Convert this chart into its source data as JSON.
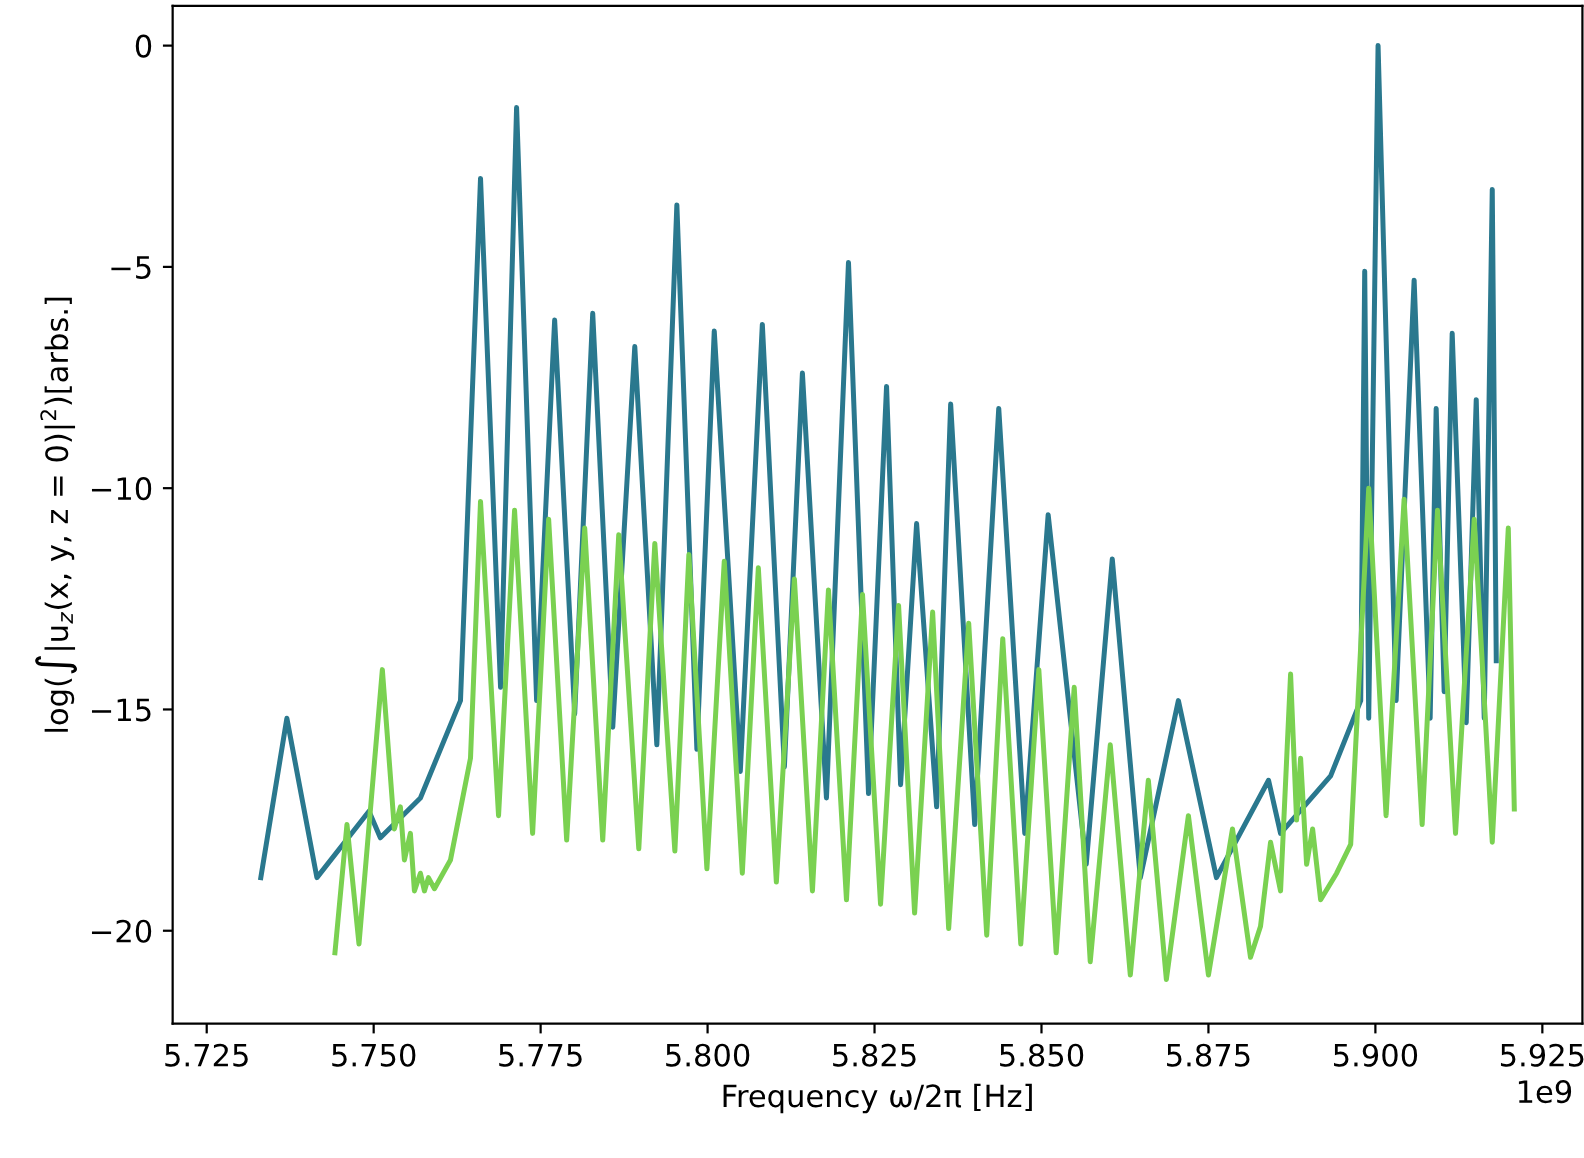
{
  "chart_data": {
    "type": "line",
    "xlabel": "Frequency ω/2π [Hz]",
    "ylabel": "log(∫|u$_{z}$(x, y, z = 0)|$^{2}$)[arbs.]",
    "annotations": [
      "1e9"
    ],
    "xlim": [
      5.7199,
      5.931
    ],
    "ylim": [
      -22.1,
      0.9
    ],
    "xticks": [
      {
        "value": 5.725,
        "label": "5.725"
      },
      {
        "value": 5.75,
        "label": "5.750"
      },
      {
        "value": 5.775,
        "label": "5.775"
      },
      {
        "value": 5.8,
        "label": "5.800"
      },
      {
        "value": 5.825,
        "label": "5.825"
      },
      {
        "value": 5.85,
        "label": "5.850"
      },
      {
        "value": 5.875,
        "label": "5.875"
      },
      {
        "value": 5.9,
        "label": "5.900"
      },
      {
        "value": 5.925,
        "label": "5.925"
      }
    ],
    "yticks": [
      {
        "value": -20,
        "label": "−20"
      },
      {
        "value": -15,
        "label": "−15"
      },
      {
        "value": -10,
        "label": "−10"
      },
      {
        "value": -5,
        "label": "−5"
      },
      0
    ],
    "grid": false,
    "marker": "none",
    "line_style": "solid",
    "series": [
      {
        "color": "#2a788e",
        "x": [
          5.7331,
          5.737,
          5.7415,
          5.7493,
          5.751,
          5.757,
          5.763,
          5.766,
          5.769,
          5.7714,
          5.7744,
          5.7771,
          5.7801,
          5.7828,
          5.7858,
          5.7891,
          5.7924,
          5.7954,
          5.7984,
          5.801,
          5.8049,
          5.8082,
          5.8115,
          5.8142,
          5.8178,
          5.8211,
          5.8241,
          5.8268,
          5.8289,
          5.8313,
          5.8343,
          5.8364,
          5.84,
          5.8436,
          5.8475,
          5.851,
          5.8567,
          5.8606,
          5.8648,
          5.8705,
          5.8762,
          5.884,
          5.8858,
          5.8933,
          5.8978,
          5.8984,
          5.899,
          5.9004,
          5.9031,
          5.9058,
          5.9082,
          5.9091,
          5.9103,
          5.9115,
          5.9136,
          5.9151,
          5.9163,
          5.9175,
          5.9181
        ],
        "values": [
          -18.8,
          -15.2,
          -18.8,
          -17.3,
          -17.9,
          -17.0,
          -14.8,
          -3.0,
          -14.5,
          -1.4,
          -14.8,
          -6.2,
          -15.1,
          -6.05,
          -15.4,
          -6.8,
          -15.8,
          -3.6,
          -15.9,
          -6.45,
          -16.4,
          -6.3,
          -16.3,
          -7.4,
          -17.0,
          -4.9,
          -16.9,
          -7.7,
          -16.7,
          -10.8,
          -17.2,
          -8.1,
          -17.6,
          -8.2,
          -17.8,
          -10.6,
          -18.5,
          -11.6,
          -18.8,
          -14.8,
          -18.8,
          -16.6,
          -17.8,
          -16.5,
          -14.8,
          -5.1,
          -15.2,
          0.0,
          -14.8,
          -5.3,
          -15.2,
          -8.2,
          -14.6,
          -6.5,
          -15.3,
          -8.0,
          -15.2,
          -3.25,
          -13.9
        ]
      },
      {
        "color": "#7ad151",
        "x": [
          5.7442,
          5.746,
          5.7478,
          5.7513,
          5.7531,
          5.754,
          5.7546,
          5.7555,
          5.7561,
          5.757,
          5.7576,
          5.7582,
          5.7591,
          5.7615,
          5.7645,
          5.766,
          5.7687,
          5.7711,
          5.7738,
          5.7762,
          5.7789,
          5.7816,
          5.7843,
          5.7867,
          5.7897,
          5.7921,
          5.7951,
          5.7972,
          5.7999,
          5.8025,
          5.8052,
          5.8076,
          5.8103,
          5.813,
          5.8157,
          5.8181,
          5.8208,
          5.8232,
          5.8259,
          5.8286,
          5.831,
          5.8337,
          5.8361,
          5.8391,
          5.8418,
          5.8442,
          5.8469,
          5.8496,
          5.8522,
          5.8549,
          5.8573,
          5.8603,
          5.8633,
          5.866,
          5.8687,
          5.872,
          5.875,
          5.8786,
          5.8813,
          5.8828,
          5.8843,
          5.8858,
          5.8873,
          5.8882,
          5.8888,
          5.8897,
          5.8906,
          5.8918,
          5.8942,
          5.8963,
          5.899,
          5.9016,
          5.9043,
          5.907,
          5.9093,
          5.912,
          5.9148,
          5.9175,
          5.9199,
          5.9208
        ],
        "values": [
          -20.5,
          -17.6,
          -20.3,
          -14.1,
          -17.7,
          -17.2,
          -18.4,
          -17.8,
          -19.1,
          -18.7,
          -19.1,
          -18.8,
          -19.05,
          -18.4,
          -16.1,
          -10.3,
          -17.4,
          -10.5,
          -17.8,
          -10.7,
          -17.95,
          -10.9,
          -17.95,
          -11.05,
          -18.15,
          -11.25,
          -18.2,
          -11.5,
          -18.6,
          -11.65,
          -18.7,
          -11.8,
          -18.9,
          -12.05,
          -19.1,
          -12.3,
          -19.3,
          -12.4,
          -19.4,
          -12.65,
          -19.6,
          -12.8,
          -19.95,
          -13.05,
          -20.1,
          -13.4,
          -20.3,
          -14.1,
          -20.5,
          -14.5,
          -20.7,
          -15.8,
          -21.0,
          -16.6,
          -21.1,
          -17.4,
          -21.0,
          -17.7,
          -20.6,
          -19.9,
          -18.0,
          -19.1,
          -14.2,
          -17.5,
          -16.1,
          -18.5,
          -17.7,
          -19.3,
          -18.7,
          -18.05,
          -10.0,
          -17.4,
          -10.25,
          -17.6,
          -10.5,
          -17.8,
          -10.7,
          -18.0,
          -10.9,
          -17.25
        ]
      }
    ]
  }
}
